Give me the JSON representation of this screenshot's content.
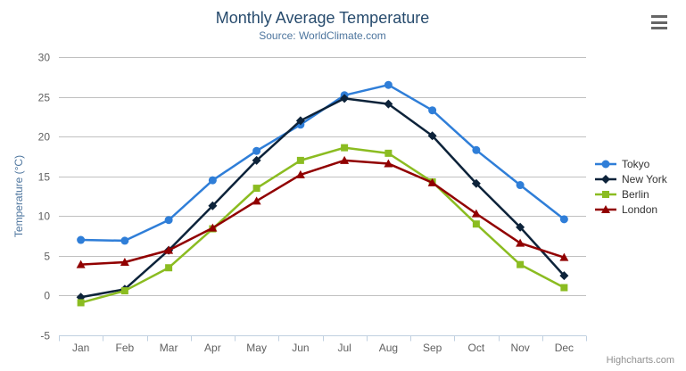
{
  "chart": {
    "credit": "Highcharts.com",
    "context_menu_icon": "hamburger-icon"
  },
  "chart_data": {
    "type": "line",
    "title": "Monthly Average Temperature",
    "subtitle": "Source: WorldClimate.com",
    "xlabel": "",
    "ylabel": "Temperature (°C)",
    "categories": [
      "Jan",
      "Feb",
      "Mar",
      "Apr",
      "May",
      "Jun",
      "Jul",
      "Aug",
      "Sep",
      "Oct",
      "Nov",
      "Dec"
    ],
    "ylim": [
      -5,
      30
    ],
    "y_ticks": [
      -5,
      0,
      5,
      10,
      15,
      20,
      25,
      30
    ],
    "grid": true,
    "legend_position": "right",
    "series": [
      {
        "name": "Tokyo",
        "color": "#2f7ed8",
        "marker": "circle",
        "values": [
          7.0,
          6.9,
          9.5,
          14.5,
          18.2,
          21.5,
          25.2,
          26.5,
          23.3,
          18.3,
          13.9,
          9.6
        ]
      },
      {
        "name": "New York",
        "color": "#0d233a",
        "marker": "diamond",
        "values": [
          -0.2,
          0.8,
          5.7,
          11.3,
          17.0,
          22.0,
          24.8,
          24.1,
          20.1,
          14.1,
          8.6,
          2.5
        ]
      },
      {
        "name": "Berlin",
        "color": "#8bbc21",
        "marker": "square",
        "values": [
          -0.9,
          0.6,
          3.5,
          8.4,
          13.5,
          17.0,
          18.6,
          17.9,
          14.3,
          9.0,
          3.9,
          1.0
        ]
      },
      {
        "name": "London",
        "color": "#910000",
        "marker": "triangle-up",
        "values": [
          3.9,
          4.2,
          5.7,
          8.5,
          11.9,
          15.2,
          17.0,
          16.6,
          14.2,
          10.3,
          6.6,
          4.8
        ]
      }
    ],
    "style": {
      "title_color": "#274b6d",
      "subtitle_color": "#4d759e",
      "grid_line_color": "#c0c0c0",
      "x_axis_line_color": "#c0d0e0",
      "tick_label_color": "#606060",
      "axis_title_color": "#4d759e",
      "legend_text_color": "#333333"
    }
  }
}
